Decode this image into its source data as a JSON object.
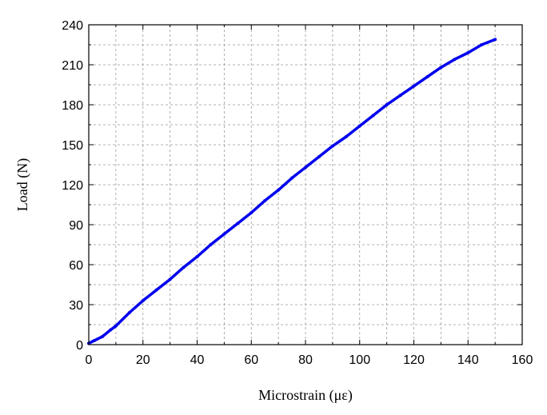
{
  "chart_data": {
    "type": "line",
    "xlabel": "Microstrain (με)",
    "ylabel": "Load (N)",
    "xlim": [
      0,
      160
    ],
    "ylim": [
      0,
      240
    ],
    "x_ticks": [
      0,
      20,
      40,
      60,
      80,
      100,
      120,
      140,
      160
    ],
    "y_ticks": [
      0,
      30,
      60,
      90,
      120,
      150,
      180,
      210,
      240
    ],
    "x_tick_labels": [
      "0",
      "20",
      "40",
      "60",
      "80",
      "100",
      "120",
      "140",
      "160"
    ],
    "y_tick_labels": [
      "0",
      "30",
      "60",
      "90",
      "120",
      "150",
      "180",
      "210",
      "240"
    ],
    "grid": true,
    "series": [
      {
        "color": "#0000ee",
        "x": [
          0,
          2,
          5,
          8,
          10,
          15,
          20,
          25,
          30,
          35,
          40,
          45,
          50,
          55,
          60,
          65,
          70,
          75,
          80,
          85,
          90,
          95,
          100,
          105,
          110,
          115,
          120,
          125,
          130,
          135,
          140,
          145,
          150
        ],
        "y": [
          1,
          3,
          6,
          11,
          14,
          24,
          33,
          41,
          49,
          58,
          66,
          75,
          83,
          91,
          99,
          108,
          116,
          125,
          133,
          141,
          149,
          156,
          164,
          172,
          180,
          187,
          194,
          201,
          208,
          214,
          219,
          225,
          229
        ]
      }
    ]
  }
}
